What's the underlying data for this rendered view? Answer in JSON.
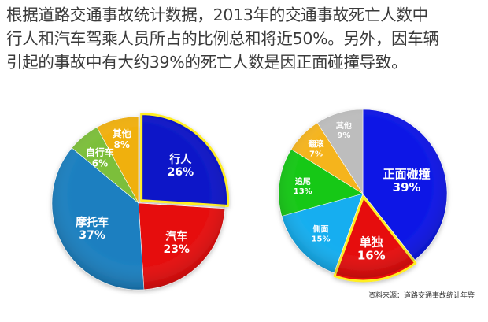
{
  "headline": {
    "lines": [
      "根据道路交通事故统计数据，2013年的交通事故死亡人数中",
      "行人和汽车驾乘人员所占的比例总和将近50%。另外，因车辆",
      "引起的事故中有大约39%的死亡人数是因正面碰撞导致。"
    ]
  },
  "source": "资料来源：道路交通事故统计年鉴",
  "chart_data": [
    {
      "type": "pie",
      "title": "",
      "categories": [
        "行人",
        "汽车",
        "摩托车",
        "自行车",
        "其他"
      ],
      "values": [
        26,
        23,
        37,
        6,
        8
      ],
      "labels": [
        "26%",
        "23%",
        "37%",
        "6%",
        "8%"
      ],
      "colors": [
        "#0a14c8",
        "#e60a0a",
        "#1a7fc0",
        "#7cbf3a",
        "#f0b010"
      ],
      "highlighted": "行人"
    },
    {
      "type": "pie",
      "title": "",
      "categories": [
        "正面碰撞",
        "单独",
        "侧面",
        "追尾",
        "翻滚",
        "其他"
      ],
      "values": [
        39,
        16,
        15,
        13,
        7,
        9
      ],
      "labels": [
        "39%",
        "16%",
        "15%",
        "13%",
        "7%",
        "9%"
      ],
      "colors": [
        "#0a14e6",
        "#e60a0a",
        "#12aef0",
        "#14c814",
        "#f5b41e",
        "#bdbdbd"
      ],
      "highlighted": "单独"
    }
  ]
}
